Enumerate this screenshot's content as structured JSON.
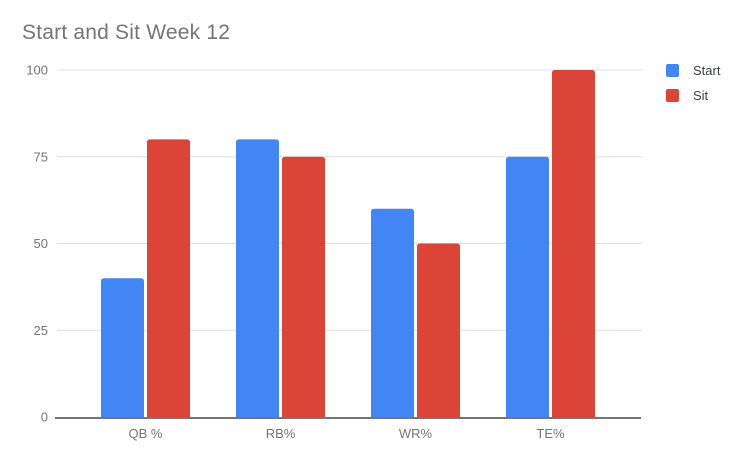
{
  "chart_data": {
    "type": "bar",
    "title": "Start and Sit Week 12",
    "categories": [
      "QB %",
      "RB%",
      "WR%",
      "TE%"
    ],
    "series": [
      {
        "name": "Start",
        "color": "#4285F4",
        "values": [
          40,
          80,
          60,
          75
        ]
      },
      {
        "name": "Sit",
        "color": "#DB4437",
        "values": [
          80,
          75,
          50,
          100
        ]
      }
    ],
    "ylim": [
      0,
      100
    ],
    "yticks": [
      0,
      25,
      50,
      75,
      100
    ],
    "xlabel": "",
    "ylabel": "",
    "grid": "horizontal",
    "legend_position": "right",
    "background_color": "#ffffff",
    "gridline_color": "#e0e0e0",
    "axis_line_color": "#757575",
    "tick_label_color": "#757575",
    "category_label_color": "#757575",
    "title_color": "#757575",
    "legend_text_color": "#3c4043"
  }
}
